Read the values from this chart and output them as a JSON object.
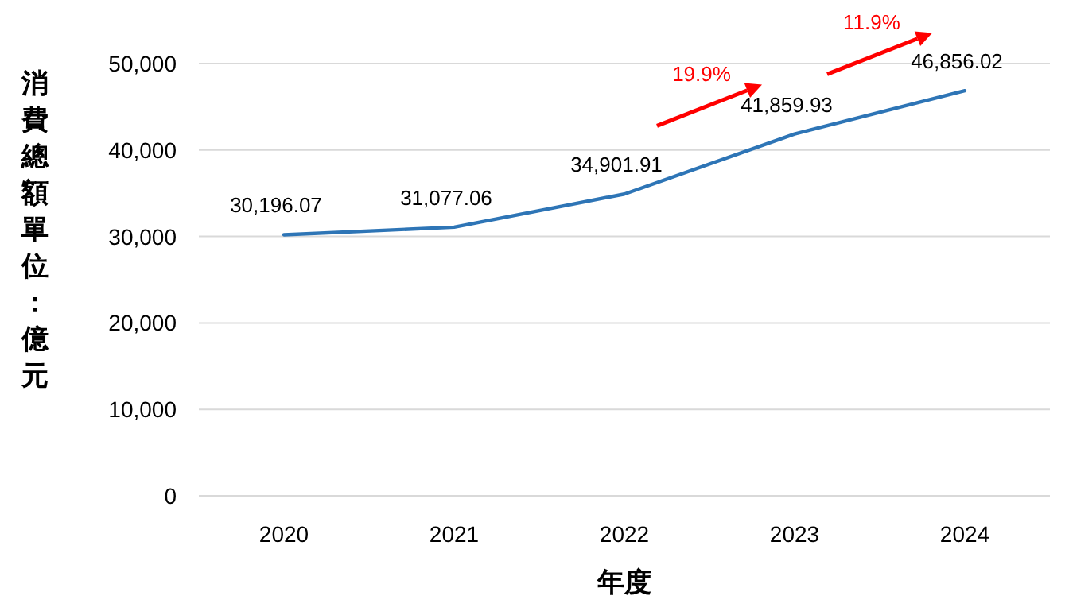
{
  "chart_data": {
    "type": "line",
    "xlabel": "年度",
    "ylabel": "消費總額單位：億元",
    "categories": [
      "2020",
      "2021",
      "2022",
      "2023",
      "2024"
    ],
    "series": [
      {
        "color": "#2e75b6",
        "values": [
          30196.07,
          31077.06,
          34901.91,
          41859.93,
          46856.02
        ]
      }
    ],
    "value_labels": [
      "30,196.07",
      "31,077.06",
      "34,901.91",
      "41,859.93",
      "46,856.02"
    ],
    "ylim": [
      0,
      50000
    ],
    "yticks": [
      {
        "value": 0,
        "label": "0"
      },
      {
        "value": 10000,
        "label": "10,000"
      },
      {
        "value": 20000,
        "label": "20,000"
      },
      {
        "value": 30000,
        "label": "30,000"
      },
      {
        "value": 40000,
        "label": "40,000"
      },
      {
        "value": 50000,
        "label": "50,000"
      }
    ],
    "grid": "y",
    "marker": "none",
    "line_style": "solid",
    "annotations": [
      "19.9%",
      "11.9%"
    ]
  }
}
